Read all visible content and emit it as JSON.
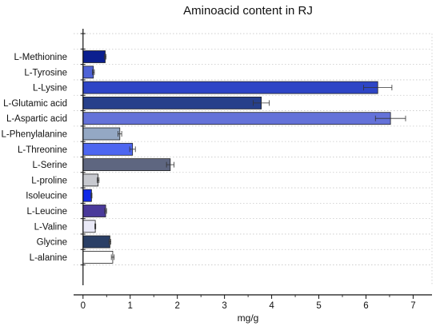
{
  "chart_data": {
    "type": "bar",
    "orientation": "horizontal",
    "title": "Aminoacid content in RJ",
    "xlabel": "mg/g",
    "ylabel": "",
    "xlim": [
      -0.2,
      7.4
    ],
    "xticks": [
      0,
      1,
      2,
      3,
      4,
      5,
      6,
      7
    ],
    "grid": true,
    "categories": [
      "L-Methionine",
      "L-Tyrosine",
      "L-Lysine",
      "L-Glutamic acid",
      "L-Aspartic acid",
      "L-Phenylalanine",
      "L-Threonine",
      "L-Serine",
      "L-proline",
      "Isoleucine",
      "L-Leucine",
      "L-Valine",
      "Glycine",
      "L-alanine"
    ],
    "values": [
      0.47,
      0.22,
      6.25,
      3.78,
      6.52,
      0.78,
      1.05,
      1.85,
      0.32,
      0.18,
      0.48,
      0.26,
      0.57,
      0.63
    ],
    "errors": [
      0.02,
      0.02,
      0.3,
      0.17,
      0.32,
      0.04,
      0.06,
      0.08,
      0.02,
      0.01,
      0.02,
      0.01,
      0.02,
      0.03
    ],
    "colors": [
      "#0b1f8f",
      "#4f63d6",
      "#2e45c6",
      "#27408b",
      "#6472d9",
      "#94a8c4",
      "#4d66f0",
      "#5e6680",
      "#c7c9cf",
      "#1029e8",
      "#4a3a9a",
      "#e9e9f7",
      "#2a3f66",
      "#ffffff"
    ]
  }
}
